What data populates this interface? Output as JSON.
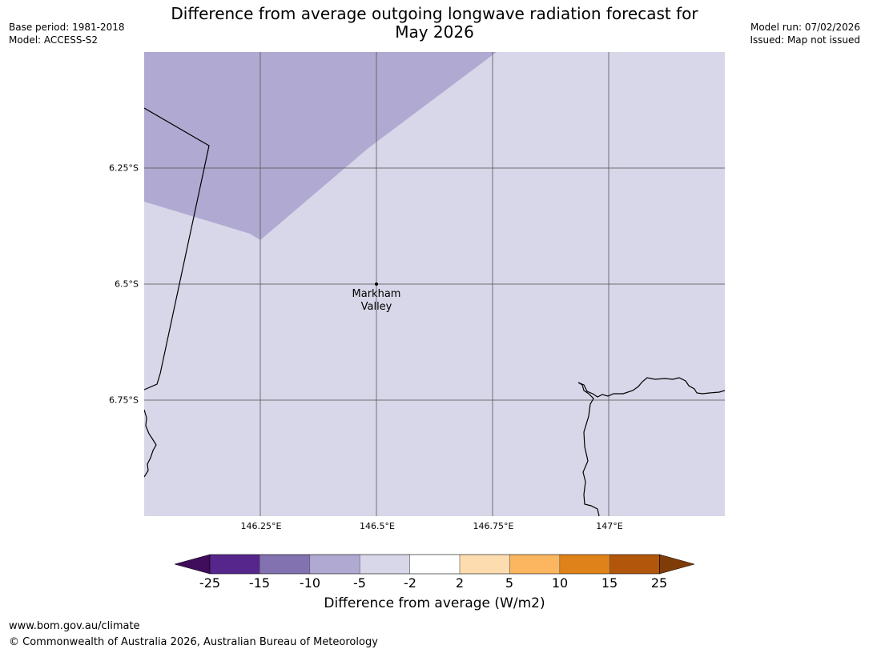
{
  "header": {
    "title_line1": "Difference from average outgoing longwave radiation forecast for",
    "title_line2": "May 2026",
    "base_period": "Base period: 1981-2018",
    "model": "Model: ACCESS-S2",
    "model_run": "Model run: 07/02/2026",
    "issued": "Issued: Map not issued"
  },
  "map": {
    "lat_ticks": [
      "6.25°S",
      "6.5°S",
      "6.75°S"
    ],
    "lon_ticks": [
      "146.25°E",
      "146.5°E",
      "146.75°E",
      "147°E"
    ],
    "place": {
      "name_line1": "Markham",
      "name_line2": "Valley"
    },
    "region_colors": {
      "minus10_to_minus5": "#b0aad2",
      "minus5_to_minus2": "#d7d7e9"
    }
  },
  "legend": {
    "title": "Difference from average (W/m2)",
    "tick_labels": [
      "-25",
      "-15",
      "-10",
      "-5",
      "-2",
      "2",
      "5",
      "10",
      "15",
      "25"
    ],
    "colors": {
      "below_min": "#3f0d5c",
      "bins": [
        "#57268c",
        "#8272b0",
        "#b0aad2",
        "#d7d7e9",
        "#ffffff",
        "#fddcb0",
        "#fbb65f",
        "#e0821a",
        "#b1560a"
      ],
      "above_max": "#7f3b08"
    }
  },
  "footer": {
    "url": "www.bom.gov.au/climate",
    "copyright": "© Commonwealth of Australia 2026, Australian Bureau of Meteorology"
  }
}
